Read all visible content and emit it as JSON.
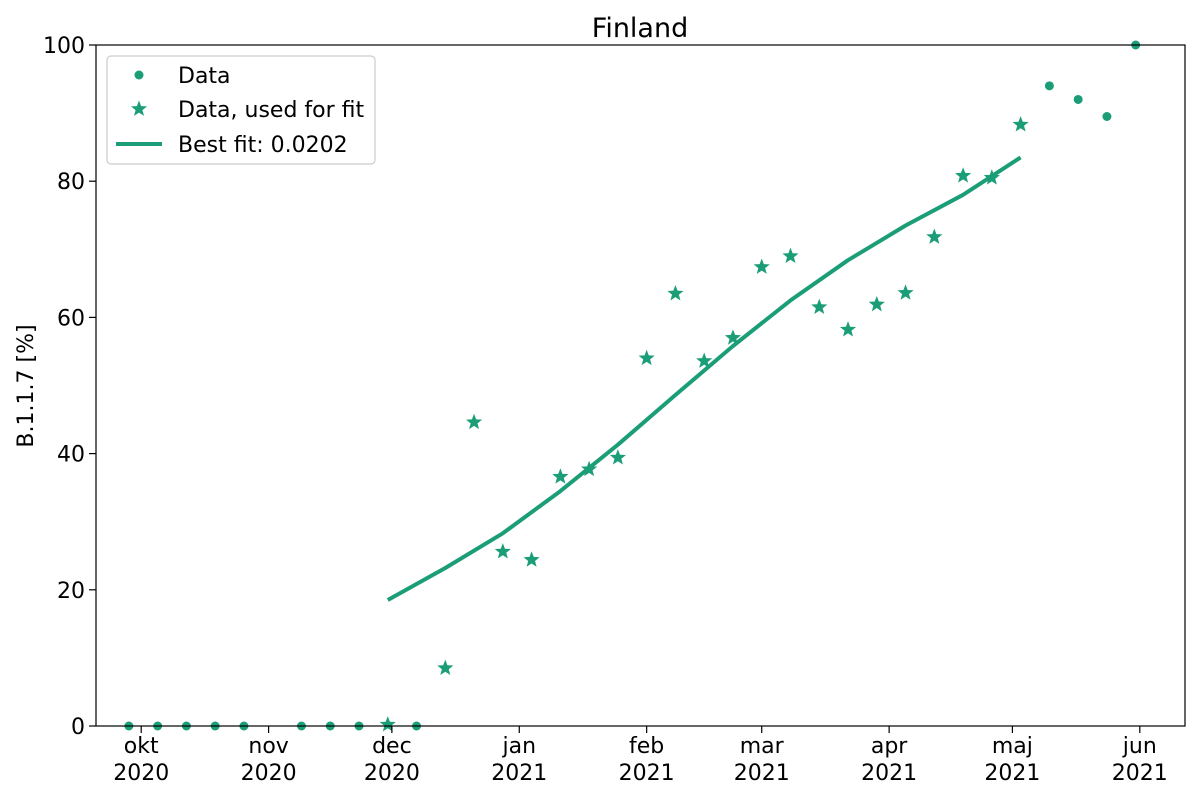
{
  "chart_data": {
    "type": "scatter",
    "title": "Finland",
    "xlabel": "",
    "ylabel": "B.1.1.7 [%]",
    "xlim": [
      "2020-09-20",
      "2021-06-12"
    ],
    "ylim": [
      0,
      100
    ],
    "grid": false,
    "legend_position": "top-left",
    "color": "#1b9e77",
    "x_ticks": [
      {
        "date": "2020-10-01",
        "label_top": "okt",
        "label_bottom": "2020"
      },
      {
        "date": "2020-11-01",
        "label_top": "nov",
        "label_bottom": "2020"
      },
      {
        "date": "2020-12-01",
        "label_top": "dec",
        "label_bottom": "2020"
      },
      {
        "date": "2021-01-01",
        "label_top": "jan",
        "label_bottom": "2021"
      },
      {
        "date": "2021-02-01",
        "label_top": "feb",
        "label_bottom": "2021"
      },
      {
        "date": "2021-03-01",
        "label_top": "mar",
        "label_bottom": "2021"
      },
      {
        "date": "2021-04-01",
        "label_top": "apr",
        "label_bottom": "2021"
      },
      {
        "date": "2021-05-01",
        "label_top": "maj",
        "label_bottom": "2021"
      },
      {
        "date": "2021-06-01",
        "label_top": "jun",
        "label_bottom": "2021"
      }
    ],
    "y_ticks": [
      0,
      20,
      40,
      60,
      80,
      100
    ],
    "series": [
      {
        "name": "Data",
        "marker": "dot",
        "points": [
          {
            "x": "2020-09-28",
            "y": 0
          },
          {
            "x": "2020-10-05",
            "y": 0
          },
          {
            "x": "2020-10-12",
            "y": 0
          },
          {
            "x": "2020-10-19",
            "y": 0
          },
          {
            "x": "2020-10-26",
            "y": 0
          },
          {
            "x": "2020-11-09",
            "y": 0
          },
          {
            "x": "2020-11-16",
            "y": 0
          },
          {
            "x": "2020-11-23",
            "y": 0
          },
          {
            "x": "2020-12-07",
            "y": 0
          },
          {
            "x": "2021-05-10",
            "y": 94
          },
          {
            "x": "2021-05-17",
            "y": 92
          },
          {
            "x": "2021-05-24",
            "y": 89.5
          },
          {
            "x": "2021-05-31",
            "y": 100
          }
        ]
      },
      {
        "name": "Data, used for fit",
        "marker": "star",
        "points": [
          {
            "x": "2020-11-30",
            "y": 0.2
          },
          {
            "x": "2020-12-14",
            "y": 8.5
          },
          {
            "x": "2020-12-21",
            "y": 44.6
          },
          {
            "x": "2020-12-28",
            "y": 25.6
          },
          {
            "x": "2021-01-04",
            "y": 24.4
          },
          {
            "x": "2021-01-11",
            "y": 36.6
          },
          {
            "x": "2021-01-18",
            "y": 37.7
          },
          {
            "x": "2021-01-25",
            "y": 39.4
          },
          {
            "x": "2021-02-01",
            "y": 54
          },
          {
            "x": "2021-02-08",
            "y": 63.5
          },
          {
            "x": "2021-02-15",
            "y": 53.6
          },
          {
            "x": "2021-02-22",
            "y": 57
          },
          {
            "x": "2021-03-01",
            "y": 67.4
          },
          {
            "x": "2021-03-08",
            "y": 69
          },
          {
            "x": "2021-03-15",
            "y": 61.5
          },
          {
            "x": "2021-03-22",
            "y": 58.2
          },
          {
            "x": "2021-03-29",
            "y": 61.9
          },
          {
            "x": "2021-04-05",
            "y": 63.6
          },
          {
            "x": "2021-04-12",
            "y": 71.8
          },
          {
            "x": "2021-04-19",
            "y": 80.8
          },
          {
            "x": "2021-04-26",
            "y": 80.5
          },
          {
            "x": "2021-05-03",
            "y": 88.3
          }
        ]
      },
      {
        "name": "Best fit: 0.0202",
        "marker": "line",
        "points": [
          {
            "x": "2020-11-30",
            "y": 18.5
          },
          {
            "x": "2020-12-14",
            "y": 23.2
          },
          {
            "x": "2020-12-28",
            "y": 28.3
          },
          {
            "x": "2021-01-11",
            "y": 34.5
          },
          {
            "x": "2021-01-25",
            "y": 41.3
          },
          {
            "x": "2021-02-08",
            "y": 48.6
          },
          {
            "x": "2021-02-22",
            "y": 55.8
          },
          {
            "x": "2021-03-08",
            "y": 62.5
          },
          {
            "x": "2021-03-22",
            "y": 68.4
          },
          {
            "x": "2021-04-05",
            "y": 73.5
          },
          {
            "x": "2021-04-19",
            "y": 78
          },
          {
            "x": "2021-05-03",
            "y": 83.5
          }
        ]
      }
    ]
  }
}
